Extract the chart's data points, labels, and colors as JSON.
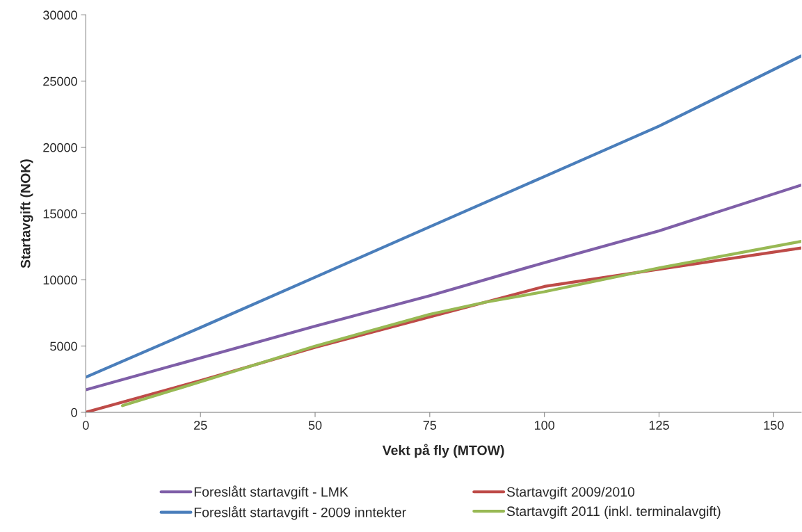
{
  "chart_data": {
    "type": "line",
    "xlabel": "Vekt på fly (MTOW)",
    "ylabel": "Startavgift (NOK)",
    "xlim": [
      0,
      156
    ],
    "xticks": [
      0,
      25,
      50,
      75,
      100,
      125,
      150
    ],
    "ylim": [
      0,
      30000
    ],
    "yticks": [
      0,
      5000,
      10000,
      15000,
      20000,
      25000,
      30000
    ],
    "grid": false,
    "legend": "bottom",
    "marker": "none",
    "line_style": "solid",
    "series": [
      {
        "name": "Foreslått startavgift - LMK",
        "color": "#7f5fa8",
        "x": [
          0,
          25,
          50,
          75,
          100,
          125,
          156
        ],
        "values": [
          1700,
          4100,
          6500,
          8800,
          11300,
          13700,
          17150
        ]
      },
      {
        "name": "Foreslått startavgift - 2009 inntekter",
        "color": "#4a7ebb",
        "x": [
          0,
          25,
          50,
          75,
          100,
          125,
          156
        ],
        "values": [
          2650,
          6400,
          10200,
          14000,
          17800,
          21600,
          26900
        ]
      },
      {
        "name": "Startavgift 2009/2010",
        "color": "#be4b48",
        "x": [
          0,
          25,
          50,
          75,
          87,
          100,
          125,
          156
        ],
        "values": [
          0,
          2400,
          4900,
          7200,
          8300,
          9500,
          10800,
          12400
        ]
      },
      {
        "name": "Startavgift 2011 (inkl. terminalavgift)",
        "color": "#98b954",
        "x": [
          8,
          25,
          50,
          75,
          87,
          100,
          125,
          156
        ],
        "values": [
          500,
          2300,
          5000,
          7400,
          8300,
          9100,
          10900,
          12900
        ]
      }
    ]
  }
}
